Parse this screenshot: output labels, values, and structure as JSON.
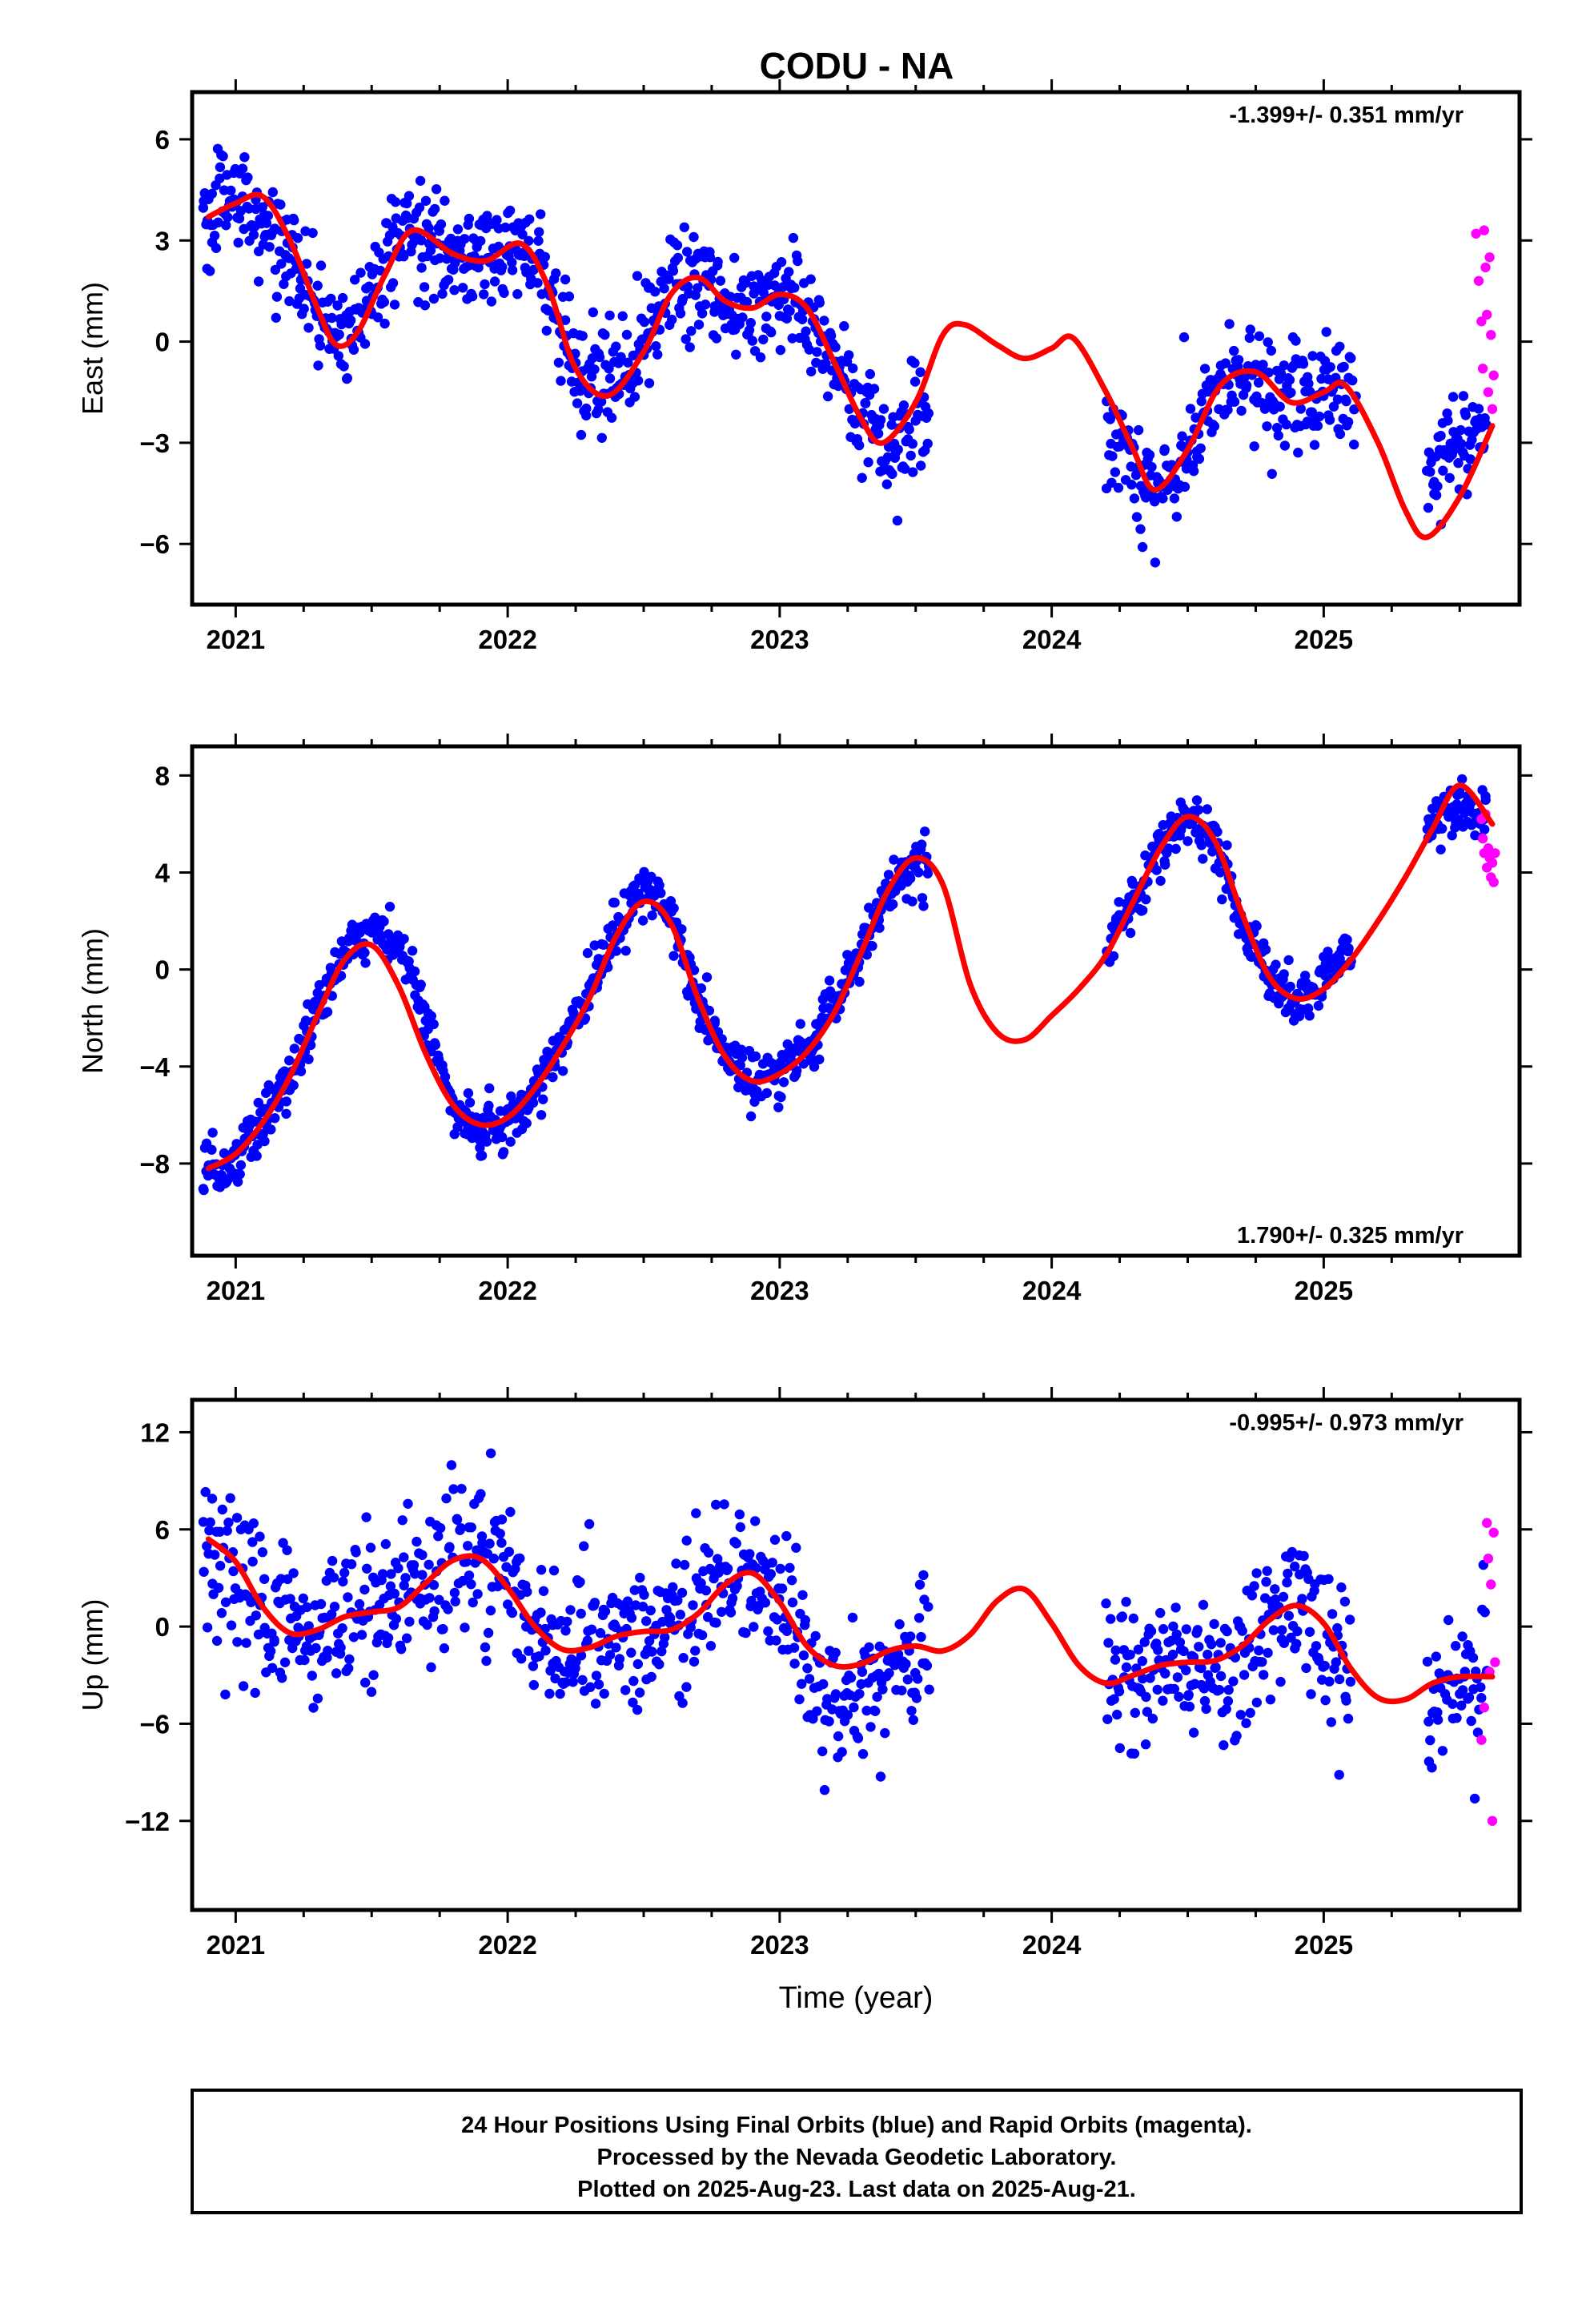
{
  "title": "CODU - NA",
  "caption": {
    "lines": [
      "24 Hour Positions Using Final Orbits (blue) and Rapid Orbits (magenta).",
      "Processed by the Nevada Geodetic Laboratory.",
      "Plotted on 2025-Aug-23. Last data on 2025-Aug-21."
    ]
  },
  "colors": {
    "final": "#0000ff",
    "rapid": "#ff00ff",
    "fit": "#ff0000",
    "frame": "#000000"
  },
  "chart_data": [
    {
      "type": "scatter",
      "component": "East",
      "ylabel": "East (mm)",
      "xlabel": "",
      "rate": "-1.399+/- 0.351 mm/yr",
      "rate_position": "top-right",
      "xlim": [
        2020.84,
        2025.72
      ],
      "ylim": [
        -7.8,
        7.4
      ],
      "xticks": [
        2021,
        2022,
        2023,
        2024,
        2025
      ],
      "xtick_labels": [
        "2021",
        "2022",
        "2023",
        "2024",
        "2025"
      ],
      "yticks": [
        -6,
        -3,
        0,
        3,
        6
      ],
      "ytick_labels": [
        "−6",
        "−3",
        "0",
        "3",
        "6"
      ],
      "fit": {
        "x": [
          2020.9,
          2021.0,
          2021.1,
          2021.2,
          2021.3,
          2021.37,
          2021.45,
          2021.55,
          2021.65,
          2021.8,
          2021.92,
          2022.05,
          2022.15,
          2022.25,
          2022.37,
          2022.5,
          2022.6,
          2022.7,
          2022.8,
          2022.9,
          2023.0,
          2023.1,
          2023.2,
          2023.3,
          2023.38,
          2023.5,
          2023.6,
          2023.68,
          2023.8,
          2023.9,
          2024.0,
          2024.08,
          2024.2,
          2024.3,
          2024.38,
          2024.5,
          2024.62,
          2024.75,
          2024.88,
          2025.0,
          2025.08,
          2025.2,
          2025.3,
          2025.38,
          2025.5,
          2025.62
        ],
        "y": [
          3.7,
          4.1,
          4.3,
          3.0,
          1.0,
          -0.1,
          0.3,
          2.0,
          3.3,
          2.6,
          2.4,
          2.9,
          1.6,
          -0.8,
          -1.6,
          -0.3,
          1.4,
          1.9,
          1.2,
          1.0,
          1.4,
          1.0,
          -0.6,
          -2.3,
          -3.0,
          -1.8,
          0.2,
          0.5,
          -0.1,
          -0.5,
          -0.2,
          0.1,
          -1.5,
          -3.2,
          -4.4,
          -3.2,
          -1.3,
          -0.9,
          -1.8,
          -1.5,
          -1.3,
          -3.0,
          -5.0,
          -5.8,
          -4.6,
          -2.5
        ]
      },
      "final_trend": {
        "segments": [
          [
            2020.88,
            2023.55
          ],
          [
            2024.2,
            2025.12
          ],
          [
            2025.38,
            2025.6
          ]
        ],
        "x": [
          2020.9,
          2021.0,
          2021.1,
          2021.2,
          2021.3,
          2021.4,
          2021.5,
          2021.6,
          2021.7,
          2021.8,
          2021.9,
          2022.0,
          2022.1,
          2022.2,
          2022.3,
          2022.4,
          2022.5,
          2022.6,
          2022.7,
          2022.8,
          2022.9,
          2023.0,
          2023.1,
          2023.2,
          2023.3,
          2023.4,
          2023.5,
          2023.6,
          2024.2,
          2024.3,
          2024.4,
          2024.5,
          2024.6,
          2024.7,
          2024.8,
          2024.9,
          2025.0,
          2025.1,
          2025.2,
          2025.4,
          2025.5,
          2025.6
        ],
        "y": [
          3.8,
          4.2,
          3.8,
          2.2,
          0.8,
          0.0,
          1.2,
          3.0,
          3.2,
          2.6,
          2.5,
          2.8,
          2.4,
          0.4,
          -1.2,
          -1.4,
          0.2,
          1.6,
          1.8,
          1.2,
          1.0,
          1.4,
          0.9,
          -0.6,
          -2.2,
          -3.0,
          -2.2,
          -1.5,
          -2.4,
          -3.6,
          -4.4,
          -3.4,
          -1.5,
          -0.9,
          -1.5,
          -1.8,
          -1.4,
          -1.3,
          -2.0,
          -4.0,
          -3.2,
          -2.2
        ],
        "scatter": 1.4,
        "spacing": 0.0035
      },
      "rapid_points": {
        "x": [
          2025.56,
          2025.57,
          2025.58,
          2025.585,
          2025.59,
          2025.595,
          2025.6,
          2025.605,
          2025.61,
          2025.615,
          2025.62,
          2025.625
        ],
        "y": [
          3.2,
          1.8,
          0.6,
          -0.8,
          3.3,
          2.2,
          0.8,
          -1.5,
          2.5,
          0.2,
          -2.0,
          -1.0
        ]
      }
    },
    {
      "type": "scatter",
      "component": "North",
      "ylabel": "North (mm)",
      "xlabel": "",
      "rate": "1.790+/- 0.325 mm/yr",
      "rate_position": "bottom-right",
      "xlim": [
        2020.84,
        2025.72
      ],
      "ylim": [
        -11.8,
        9.2
      ],
      "xticks": [
        2021,
        2022,
        2023,
        2024,
        2025
      ],
      "xtick_labels": [
        "2021",
        "2022",
        "2023",
        "2024",
        "2025"
      ],
      "yticks": [
        -8,
        -4,
        0,
        4,
        8
      ],
      "ytick_labels": [
        "−8",
        "−4",
        "0",
        "4",
        "8"
      ],
      "fit": {
        "x": [
          2020.9,
          2021.0,
          2021.1,
          2021.2,
          2021.3,
          2021.4,
          2021.5,
          2021.6,
          2021.7,
          2021.8,
          2021.9,
          2022.0,
          2022.1,
          2022.2,
          2022.3,
          2022.4,
          2022.5,
          2022.6,
          2022.7,
          2022.8,
          2022.9,
          2023.0,
          2023.1,
          2023.2,
          2023.3,
          2023.4,
          2023.5,
          2023.6,
          2023.7,
          2023.8,
          2023.9,
          2024.0,
          2024.1,
          2024.2,
          2024.3,
          2024.4,
          2024.5,
          2024.6,
          2024.7,
          2024.8,
          2024.9,
          2025.0,
          2025.1,
          2025.2,
          2025.3,
          2025.4,
          2025.5,
          2025.62
        ],
        "y": [
          -8.2,
          -7.6,
          -6.3,
          -4.4,
          -1.9,
          0.4,
          1.0,
          -0.7,
          -3.5,
          -5.6,
          -6.4,
          -6.1,
          -4.9,
          -3.2,
          -1.2,
          1.4,
          2.8,
          1.9,
          -1.2,
          -3.6,
          -4.6,
          -4.3,
          -3.4,
          -1.8,
          0.7,
          3.3,
          4.6,
          3.5,
          -0.6,
          -2.6,
          -2.9,
          -1.9,
          -0.8,
          0.6,
          2.8,
          5.0,
          6.3,
          5.3,
          2.3,
          -0.3,
          -1.2,
          -0.8,
          0.4,
          2.0,
          3.8,
          5.8,
          7.6,
          6.0
        ]
      },
      "final_trend": {
        "segments": [
          [
            2020.88,
            2023.55
          ],
          [
            2024.2,
            2025.1
          ],
          [
            2025.38,
            2025.6
          ]
        ],
        "x": [
          2020.9,
          2021.0,
          2021.1,
          2021.2,
          2021.3,
          2021.4,
          2021.5,
          2021.6,
          2021.7,
          2021.8,
          2021.9,
          2022.0,
          2022.1,
          2022.2,
          2022.3,
          2022.4,
          2022.5,
          2022.6,
          2022.7,
          2022.8,
          2022.9,
          2023.0,
          2023.1,
          2023.2,
          2023.3,
          2023.4,
          2023.5,
          2023.6,
          2024.2,
          2024.3,
          2024.4,
          2024.5,
          2024.6,
          2024.7,
          2024.8,
          2024.9,
          2025.0,
          2025.1,
          2025.4,
          2025.5,
          2025.6
        ],
        "y": [
          -8.4,
          -7.8,
          -6.3,
          -4.4,
          -1.8,
          0.8,
          1.8,
          1.0,
          -2.0,
          -5.8,
          -6.6,
          -6.3,
          -4.9,
          -3.1,
          -1.0,
          1.6,
          3.4,
          2.4,
          -1.5,
          -3.5,
          -4.6,
          -4.3,
          -3.4,
          -1.3,
          0.8,
          3.3,
          4.6,
          3.8,
          0.8,
          2.8,
          5.0,
          6.3,
          5.2,
          2.0,
          -0.5,
          -1.2,
          -0.6,
          0.6,
          5.8,
          6.8,
          6.3
        ],
        "scatter": 1.0,
        "spacing": 0.0035
      },
      "rapid_points": {
        "x": [
          2025.58,
          2025.585,
          2025.59,
          2025.595,
          2025.6,
          2025.605,
          2025.61,
          2025.615,
          2025.62,
          2025.625,
          2025.63
        ],
        "y": [
          6.2,
          5.4,
          4.8,
          6.4,
          4.2,
          5.0,
          4.6,
          3.8,
          4.4,
          3.6,
          4.8
        ]
      }
    },
    {
      "type": "scatter",
      "component": "Up",
      "ylabel": "Up (mm)",
      "xlabel": "Time (year)",
      "rate": "-0.995+/- 0.973 mm/yr",
      "rate_position": "top-right",
      "xlim": [
        2020.84,
        2025.72
      ],
      "ylim": [
        -17.5,
        14.0
      ],
      "xticks": [
        2021,
        2022,
        2023,
        2024,
        2025
      ],
      "xtick_labels": [
        "2021",
        "2022",
        "2023",
        "2024",
        "2025"
      ],
      "yticks": [
        -12,
        -6,
        0,
        6,
        12
      ],
      "ytick_labels": [
        "−12",
        "−6",
        "0",
        "6",
        "12"
      ],
      "fit": {
        "x": [
          2020.9,
          2021.0,
          2021.1,
          2021.2,
          2021.3,
          2021.4,
          2021.5,
          2021.6,
          2021.7,
          2021.8,
          2021.9,
          2022.0,
          2022.1,
          2022.2,
          2022.3,
          2022.4,
          2022.5,
          2022.6,
          2022.7,
          2022.8,
          2022.9,
          2023.0,
          2023.1,
          2023.2,
          2023.3,
          2023.4,
          2023.5,
          2023.6,
          2023.7,
          2023.8,
          2023.9,
          2024.0,
          2024.1,
          2024.2,
          2024.3,
          2024.4,
          2024.5,
          2024.6,
          2024.7,
          2024.8,
          2024.9,
          2025.0,
          2025.1,
          2025.2,
          2025.3,
          2025.4,
          2025.5,
          2025.62
        ],
        "y": [
          5.4,
          4.0,
          1.2,
          -0.4,
          -0.2,
          0.6,
          0.9,
          1.2,
          2.7,
          4.1,
          4.2,
          2.4,
          0.0,
          -1.4,
          -1.3,
          -0.6,
          -0.3,
          -0.2,
          0.8,
          2.6,
          3.3,
          1.5,
          -1.2,
          -2.4,
          -2.3,
          -1.5,
          -1.2,
          -1.5,
          -0.5,
          1.6,
          2.3,
          0.2,
          -2.4,
          -3.5,
          -3.0,
          -2.4,
          -2.2,
          -2.1,
          -1.2,
          0.4,
          1.3,
          0.2,
          -2.6,
          -4.4,
          -4.5,
          -3.5,
          -3.1,
          -3.1
        ]
      },
      "final_trend": {
        "segments": [
          [
            2020.88,
            2023.55
          ],
          [
            2024.2,
            2025.1
          ],
          [
            2025.38,
            2025.6
          ]
        ],
        "x": [
          2020.9,
          2021.0,
          2021.1,
          2021.2,
          2021.3,
          2021.4,
          2021.5,
          2021.6,
          2021.7,
          2021.8,
          2021.9,
          2022.0,
          2022.1,
          2022.2,
          2022.3,
          2022.4,
          2022.5,
          2022.6,
          2022.7,
          2022.8,
          2022.9,
          2023.0,
          2023.1,
          2023.2,
          2023.3,
          2023.4,
          2023.5,
          2023.6,
          2024.2,
          2024.3,
          2024.4,
          2024.5,
          2024.6,
          2024.7,
          2024.8,
          2024.9,
          2025.0,
          2025.1,
          2025.4,
          2025.5,
          2025.6
        ],
        "y": [
          4.6,
          3.6,
          1.4,
          -0.6,
          -0.6,
          0.4,
          1.2,
          2.0,
          3.0,
          4.0,
          4.1,
          2.6,
          0.2,
          -1.4,
          -1.2,
          -0.4,
          -0.2,
          0.2,
          1.2,
          3.0,
          3.6,
          1.6,
          -1.6,
          -3.6,
          -4.2,
          -3.2,
          -1.8,
          -1.5,
          -3.6,
          -3.2,
          -2.6,
          -2.4,
          -2.6,
          -1.8,
          0.0,
          1.8,
          0.0,
          -2.8,
          -4.2,
          -3.8,
          -3.4
        ],
        "scatter": 4.2,
        "spacing": 0.004
      },
      "rapid_points": {
        "x": [
          2025.58,
          2025.59,
          2025.6,
          2025.605,
          2025.61,
          2025.615,
          2025.62,
          2025.625,
          2025.63
        ],
        "y": [
          -7.0,
          -5.0,
          6.4,
          4.2,
          -2.8,
          2.6,
          -12.0,
          5.8,
          -2.2
        ]
      }
    }
  ]
}
